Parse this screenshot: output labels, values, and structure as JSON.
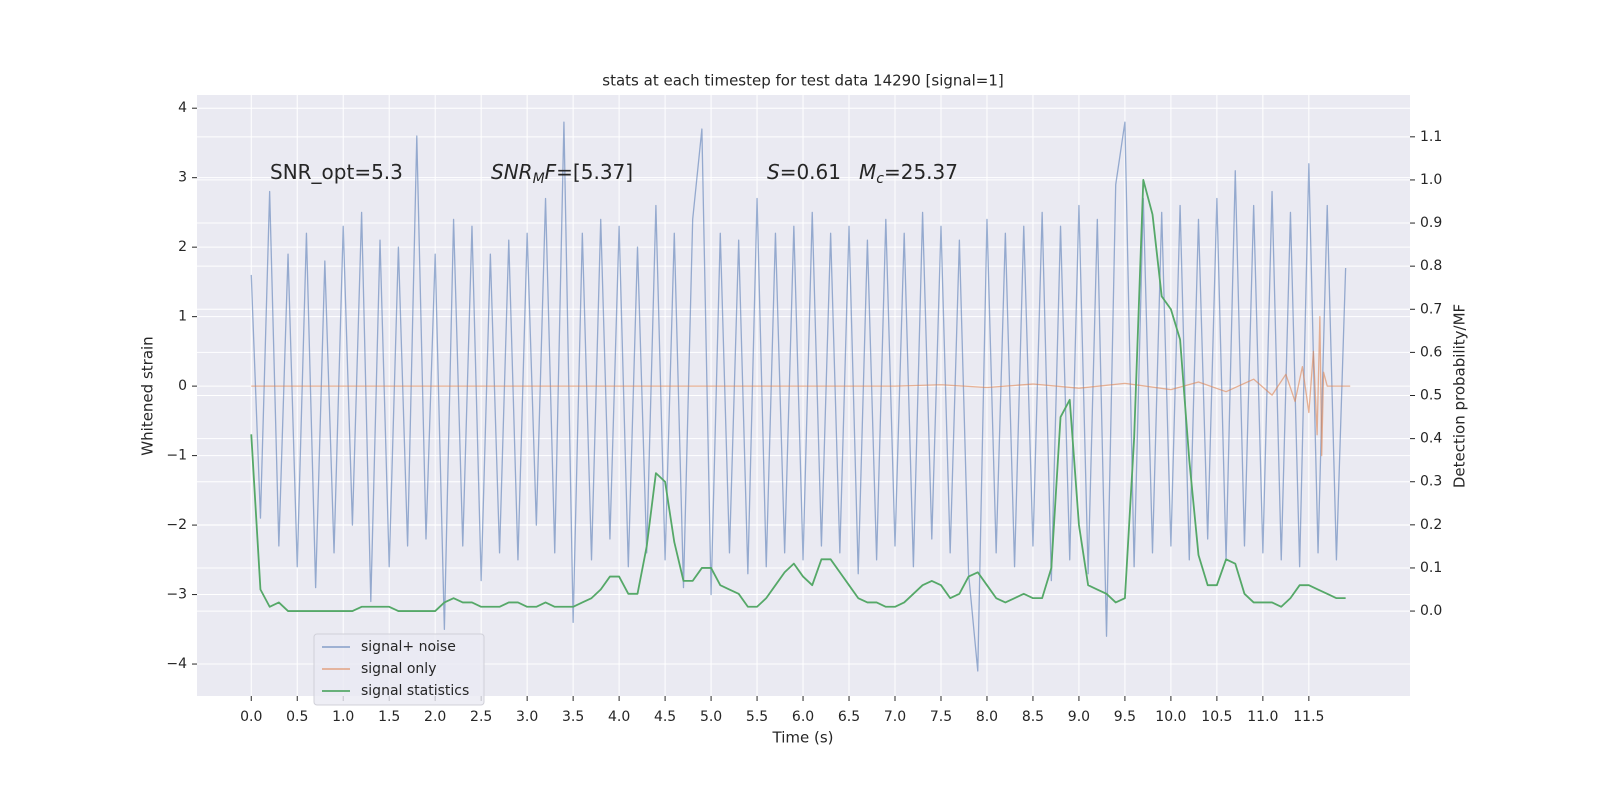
{
  "chart_data": {
    "type": "line",
    "title": "stats at each timestep for test data 14290 [signal=1]",
    "xlabel": "Time (s)",
    "ylabel": "Whitened strain",
    "y2label": "Detection probability/MF",
    "xlim": [
      -0.59,
      12.6
    ],
    "ylim": [
      -4.46,
      4.19
    ],
    "y2lim": [
      -0.197,
      1.197
    ],
    "xticks": [
      {
        "value": 0,
        "label": "0.0"
      },
      0.5,
      {
        "value": 1,
        "label": "1.0"
      },
      1.5,
      {
        "value": 2,
        "label": "2.0"
      },
      2.5,
      {
        "value": 3,
        "label": "3.0"
      },
      3.5,
      {
        "value": 4,
        "label": "4.0"
      },
      4.5,
      {
        "value": 5,
        "label": "5.0"
      },
      5.5,
      {
        "value": 6,
        "label": "6.0"
      },
      6.5,
      {
        "value": 7,
        "label": "7.0"
      },
      7.5,
      {
        "value": 8,
        "label": "8.0"
      },
      8.5,
      {
        "value": 9,
        "label": "9.0"
      },
      9.5,
      {
        "value": 10,
        "label": "10.0"
      },
      10.5,
      {
        "value": 11,
        "label": "11.0"
      },
      11.5
    ],
    "yticks": [
      {
        "value": -4,
        "label": "−4"
      },
      {
        "value": -3,
        "label": "−3"
      },
      {
        "value": -2,
        "label": "−2"
      },
      {
        "value": -1,
        "label": "−1"
      },
      0,
      1,
      2,
      3,
      4
    ],
    "y2ticks": [
      {
        "value": 0,
        "label": "0.0"
      },
      0.1,
      0.2,
      0.3,
      0.4,
      0.5,
      0.6,
      0.7,
      0.8,
      0.9,
      {
        "value": 1,
        "label": "1.0"
      },
      1.1
    ],
    "grid": true,
    "legend": "lower left",
    "annotations": [
      [
        {
          "text": "SNR_opt=5.3",
          "style": "normal"
        }
      ],
      [
        {
          "text": "SNR",
          "style": "italic"
        },
        {
          "text": "M",
          "style": "sub"
        },
        {
          "text": "F",
          "style": "italic"
        },
        {
          "text": "=[5.37]",
          "style": "normal"
        }
      ],
      [
        {
          "text": "S",
          "style": "italic"
        },
        {
          "text": "=0.61",
          "style": "normal"
        }
      ],
      [
        {
          "text": "M",
          "style": "italic"
        },
        {
          "text": "c",
          "style": "sub"
        },
        {
          "text": "=25.37",
          "style": "normal"
        }
      ]
    ],
    "x": [
      0.0,
      0.1,
      0.2,
      0.3,
      0.4,
      0.5,
      0.6,
      0.7,
      0.8,
      0.9,
      1.0,
      1.1,
      1.2,
      1.3,
      1.4,
      1.5,
      1.6,
      1.7,
      1.8,
      1.9,
      2.0,
      2.1,
      2.2,
      2.3,
      2.4,
      2.5,
      2.6,
      2.7,
      2.8,
      2.9,
      3.0,
      3.1,
      3.2,
      3.3,
      3.4,
      3.5,
      3.6,
      3.7,
      3.8,
      3.9,
      4.0,
      4.1,
      4.2,
      4.3,
      4.4,
      4.5,
      4.6,
      4.7,
      4.8,
      4.9,
      5.0,
      5.1,
      5.2,
      5.3,
      5.4,
      5.5,
      5.6,
      5.7,
      5.8,
      5.9,
      6.0,
      6.1,
      6.2,
      6.3,
      6.4,
      6.5,
      6.6,
      6.7,
      6.8,
      6.9,
      7.0,
      7.1,
      7.2,
      7.3,
      7.4,
      7.5,
      7.6,
      7.7,
      7.8,
      7.9,
      8.0,
      8.1,
      8.2,
      8.3,
      8.4,
      8.5,
      8.6,
      8.7,
      8.8,
      8.9,
      9.0,
      9.1,
      9.2,
      9.3,
      9.4,
      9.5,
      9.6,
      9.7,
      9.8,
      9.9,
      10.0,
      10.1,
      10.2,
      10.3,
      10.4,
      10.5,
      10.6,
      10.7,
      10.8,
      10.9,
      11.0,
      11.1,
      11.2,
      11.3,
      11.4,
      11.5,
      11.6,
      11.7,
      11.8,
      11.9
    ],
    "series": [
      {
        "name": "signal+ noise",
        "color": "#4c72b0",
        "alpha": 0.55,
        "values": [
          1.6,
          -1.9,
          2.8,
          -2.3,
          1.9,
          -2.6,
          2.2,
          -2.9,
          1.8,
          -2.4,
          2.3,
          -2.0,
          2.5,
          -3.1,
          2.1,
          -2.6,
          2.0,
          -2.3,
          3.6,
          -2.2,
          1.9,
          -3.5,
          2.4,
          -2.3,
          2.3,
          -2.8,
          1.9,
          -2.4,
          2.1,
          -2.5,
          2.2,
          -2.0,
          2.7,
          -2.4,
          3.8,
          -3.4,
          2.2,
          -2.5,
          2.4,
          -2.2,
          2.3,
          -2.6,
          2.0,
          -2.4,
          2.6,
          -2.5,
          2.2,
          -2.9,
          2.4,
          3.7,
          -3.0,
          2.2,
          -2.4,
          2.1,
          -2.7,
          2.7,
          -2.6,
          2.2,
          -2.4,
          2.3,
          -2.5,
          2.5,
          -2.3,
          2.2,
          -2.4,
          2.3,
          -2.7,
          2.1,
          -2.5,
          2.4,
          -2.3,
          2.2,
          -2.6,
          2.5,
          -2.2,
          2.3,
          -2.4,
          2.1,
          -2.7,
          -4.1,
          2.4,
          -2.4,
          2.2,
          -2.6,
          2.3,
          -2.3,
          2.5,
          -2.8,
          2.3,
          -2.5,
          2.6,
          -2.7,
          2.4,
          -3.6,
          2.9,
          3.8,
          -2.6,
          2.7,
          -2.4,
          2.5,
          -2.3,
          2.6,
          -2.5,
          2.4,
          -2.2,
          2.7,
          -2.5,
          3.1,
          -2.3,
          2.6,
          -2.4,
          2.8,
          -2.5,
          2.5,
          -2.6,
          3.2,
          -2.4,
          2.6,
          -2.5,
          1.7
        ]
      },
      {
        "name": "signal only",
        "color": "#dd8452",
        "alpha": 0.6,
        "x": [
          0,
          1,
          2,
          3,
          4,
          5,
          6,
          7,
          7.5,
          8,
          8.5,
          9,
          9.5,
          10,
          10.3,
          10.6,
          10.9,
          11.1,
          11.25,
          11.35,
          11.43,
          11.5,
          11.55,
          11.59,
          11.62,
          11.64,
          11.66,
          11.7,
          11.8,
          11.95
        ],
        "values": [
          0,
          0,
          0,
          0,
          0,
          0,
          0,
          0,
          0.02,
          -0.02,
          0.03,
          -0.03,
          0.04,
          -0.05,
          0.06,
          -0.08,
          0.1,
          -0.13,
          0.17,
          -0.22,
          0.28,
          -0.38,
          0.5,
          -0.7,
          1.0,
          -1.0,
          0.2,
          0,
          0,
          0
        ]
      },
      {
        "name": "signal statistics",
        "color": "#55a868",
        "alpha": 1,
        "axis": "y2",
        "values": [
          0.41,
          0.05,
          0.01,
          0.02,
          0,
          0,
          0,
          0,
          0,
          0,
          0,
          0,
          0.01,
          0.01,
          0.01,
          0.01,
          0,
          0,
          0,
          0,
          0,
          0.02,
          0.03,
          0.02,
          0.02,
          0.01,
          0.01,
          0.01,
          0.02,
          0.02,
          0.01,
          0.01,
          0.02,
          0.01,
          0.01,
          0.01,
          0.02,
          0.03,
          0.05,
          0.08,
          0.08,
          0.04,
          0.04,
          0.15,
          0.32,
          0.3,
          0.16,
          0.07,
          0.07,
          0.1,
          0.1,
          0.06,
          0.05,
          0.04,
          0.01,
          0.01,
          0.03,
          0.06,
          0.09,
          0.11,
          0.08,
          0.06,
          0.12,
          0.12,
          0.09,
          0.06,
          0.03,
          0.02,
          0.02,
          0.01,
          0.01,
          0.02,
          0.04,
          0.06,
          0.07,
          0.06,
          0.03,
          0.04,
          0.08,
          0.09,
          0.06,
          0.03,
          0.02,
          0.03,
          0.04,
          0.03,
          0.03,
          0.1,
          0.45,
          0.49,
          0.2,
          0.06,
          0.05,
          0.04,
          0.02,
          0.03,
          0.4,
          1.0,
          0.92,
          0.73,
          0.7,
          0.63,
          0.35,
          0.13,
          0.06,
          0.06,
          0.12,
          0.11,
          0.04,
          0.02,
          0.02,
          0.02,
          0.01,
          0.03,
          0.06,
          0.06,
          0.05,
          0.04,
          0.03,
          0.03
        ]
      }
    ]
  }
}
